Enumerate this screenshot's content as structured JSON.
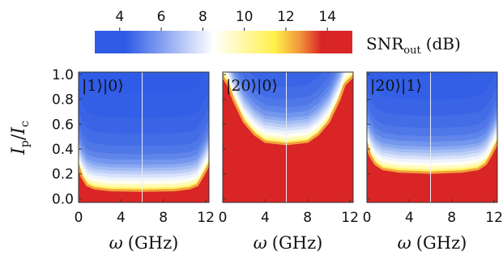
{
  "chart_data": [
    {
      "type": "heatmap",
      "label": "|1⟩|0⟩",
      "boundary": {
        "omega": [
          0,
          0.3,
          0.8,
          1.5,
          3,
          6,
          9,
          10.5,
          11.2,
          11.7,
          12
        ],
        "ip": [
          0.3,
          0.18,
          0.11,
          0.085,
          0.07,
          0.065,
          0.07,
          0.085,
          0.11,
          0.18,
          0.3
        ]
      },
      "marker_omega": 6
    },
    {
      "type": "heatmap",
      "label": "|20⟩|0⟩",
      "boundary": {
        "omega": [
          0,
          0.5,
          1,
          2,
          3,
          4,
          6,
          8,
          9,
          10,
          11,
          11.5,
          12
        ],
        "ip": [
          1.0,
          0.92,
          0.8,
          0.62,
          0.52,
          0.46,
          0.44,
          0.46,
          0.52,
          0.62,
          0.8,
          0.92,
          1.0
        ]
      },
      "marker_omega": 6
    },
    {
      "type": "heatmap",
      "label": "|20⟩|1⟩",
      "boundary": {
        "omega": [
          0,
          0.3,
          0.8,
          1.5,
          3,
          6,
          9,
          10.5,
          11.2,
          11.7,
          12
        ],
        "ip": [
          0.48,
          0.35,
          0.28,
          0.24,
          0.22,
          0.21,
          0.22,
          0.24,
          0.28,
          0.35,
          0.48
        ]
      },
      "marker_omega": 6
    }
  ],
  "colorbar": {
    "label_main": "SNR",
    "label_sub": "out",
    "label_unit": "(dB)",
    "ticks": [
      "4",
      "6",
      "8",
      "10",
      "12",
      "14"
    ],
    "tick_values": [
      4,
      6,
      8,
      10,
      12,
      14
    ],
    "range": [
      2.8,
      15.2
    ],
    "colors": {
      "low": "#2f5ce6",
      "mid": "#ffffff",
      "yellow": "#fff14a",
      "high": "#d92525"
    }
  },
  "axes": {
    "ylabel_main": "I",
    "ylabel_sub": "p",
    "ylabel_den": "I",
    "ylabel_den_sub": "c",
    "yticks": [
      "0.0",
      "0.2",
      "0.4",
      "0.6",
      "0.8",
      "1.0"
    ],
    "ytick_values": [
      0.0,
      0.2,
      0.4,
      0.6,
      0.8,
      1.0
    ],
    "xticks": [
      "0",
      "4",
      "8",
      "12"
    ],
    "xtick_values": [
      0,
      4,
      8,
      12
    ],
    "xlabel_sym": "ω",
    "xlabel_unit": "(GHz)",
    "xlim": [
      0,
      12.3
    ],
    "ylim": [
      -0.03,
      1.02
    ]
  }
}
